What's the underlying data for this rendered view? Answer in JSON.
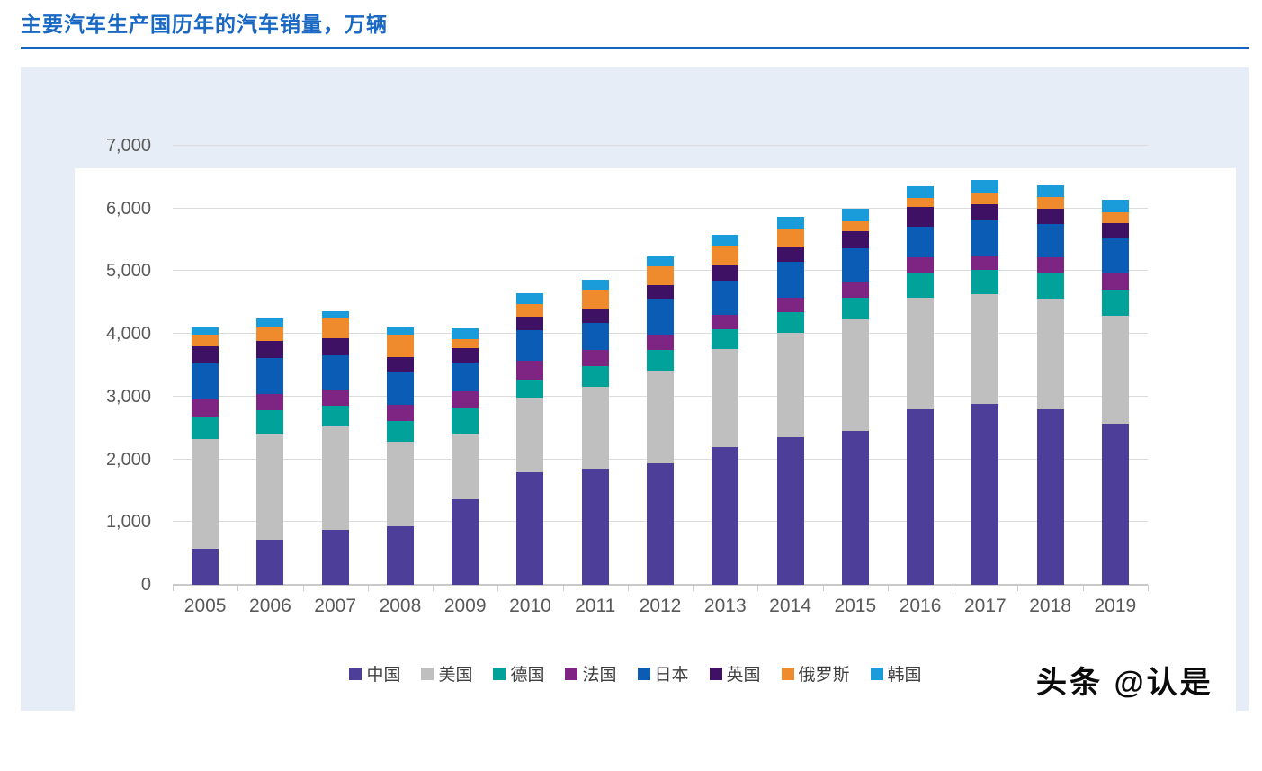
{
  "title": "主要汽车生产国历年的汽车销量，万辆",
  "watermark": {
    "text": "头条 @认是"
  },
  "colors": {
    "title_blue": "#1868C4",
    "rule_blue": "#1565C0",
    "panel_bg": "#E6EDF7",
    "card_bg": "#FFFFFF",
    "gridline": "#DCDCDC",
    "axis_text": "#595959",
    "legend_text": "#3F3F3F"
  },
  "chart_data": {
    "type": "bar",
    "subtype": "stacked-vertical",
    "title": "主要汽车生产国历年的汽车销量，万辆",
    "unit": "万辆",
    "grid": true,
    "legend_position": "bottom",
    "ylim": [
      0,
      7000
    ],
    "ytick_step": 1000,
    "yticks": [
      "0",
      "1,000",
      "2,000",
      "3,000",
      "4,000",
      "5,000",
      "6,000",
      "7,000"
    ],
    "categories": [
      "2005",
      "2006",
      "2007",
      "2008",
      "2009",
      "2010",
      "2011",
      "2012",
      "2013",
      "2014",
      "2015",
      "2016",
      "2017",
      "2018",
      "2019"
    ],
    "series": [
      {
        "name": "中国",
        "color": "#4C3E99",
        "values": [
          580,
          720,
          880,
          935,
          1365,
          1800,
          1850,
          1930,
          2200,
          2350,
          2460,
          2800,
          2890,
          2800,
          2575
        ]
      },
      {
        "name": "美国",
        "color": "#BFBFBF",
        "values": [
          1740,
          1690,
          1640,
          1350,
          1045,
          1180,
          1300,
          1480,
          1565,
          1665,
          1765,
          1780,
          1750,
          1765,
          1720
        ]
      },
      {
        "name": "德国",
        "color": "#00A29A",
        "values": [
          370,
          370,
          330,
          330,
          410,
          290,
          330,
          330,
          315,
          330,
          355,
          390,
          375,
          400,
          415
        ]
      },
      {
        "name": "法国",
        "color": "#7E2483",
        "values": [
          260,
          260,
          270,
          260,
          265,
          300,
          260,
          245,
          230,
          230,
          260,
          245,
          230,
          260,
          255
        ]
      },
      {
        "name": "日本",
        "color": "#0B5CB5",
        "values": [
          585,
          575,
          545,
          530,
          460,
          490,
          430,
          575,
          545,
          575,
          530,
          490,
          560,
          530,
          560
        ]
      },
      {
        "name": "英国",
        "color": "#3E1164",
        "values": [
          270,
          270,
          260,
          230,
          225,
          215,
          230,
          215,
          245,
          245,
          270,
          315,
          270,
          245,
          240
        ]
      },
      {
        "name": "俄罗斯",
        "color": "#F08B2D",
        "values": [
          185,
          215,
          315,
          360,
          145,
          205,
          300,
          300,
          315,
          285,
          160,
          145,
          175,
          185,
          170
        ]
      },
      {
        "name": "韩国",
        "color": "#199CD9",
        "values": [
          115,
          140,
          115,
          115,
          170,
          170,
          160,
          155,
          160,
          185,
          200,
          185,
          200,
          190,
          200
        ]
      }
    ],
    "totals": [
      4105,
      4240,
      4355,
      4110,
      4085,
      4650,
      4860,
      5230,
      5575,
      5865,
      6000,
      6350,
      6450,
      6375,
      6135
    ]
  }
}
